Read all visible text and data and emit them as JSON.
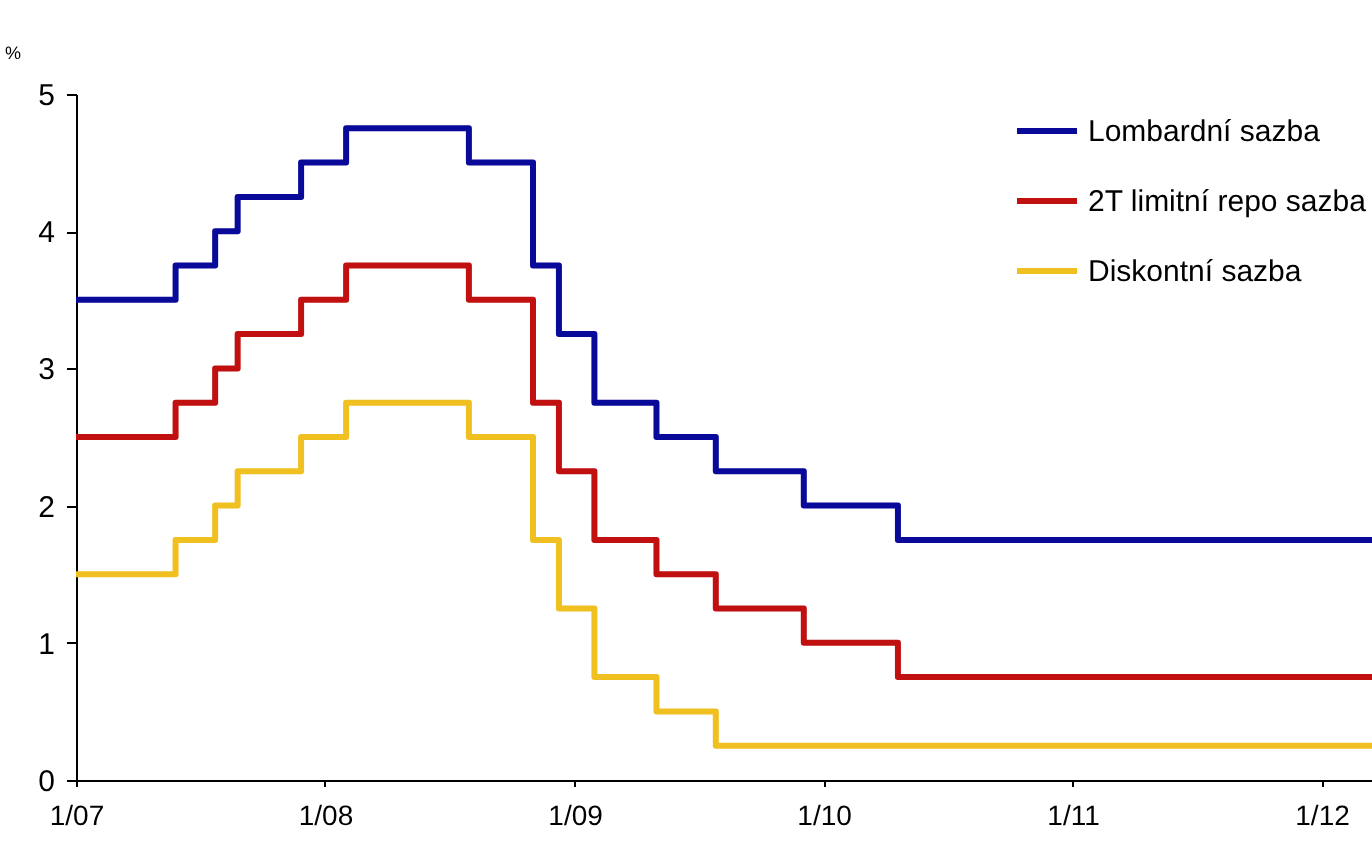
{
  "chart_data": {
    "type": "step",
    "ylabel": "%",
    "x": [
      "2007-01-01",
      "2007-05-27",
      "2007-07-24",
      "2007-08-26",
      "2007-11-27",
      "2008-02-01",
      "2008-07-30",
      "2008-11-01",
      "2008-12-09",
      "2009-01-30",
      "2009-05-01",
      "2009-07-27",
      "2009-12-03",
      "2010-04-20",
      "2012-03-15"
    ],
    "series": [
      {
        "name": "Lombardní sazba",
        "color": "#0a0a9a",
        "values": [
          3.5,
          3.75,
          4.0,
          4.25,
          4.5,
          4.75,
          4.5,
          3.75,
          3.25,
          2.75,
          2.5,
          2.25,
          2.0,
          1.75,
          1.75
        ]
      },
      {
        "name": "2T limitní repo sazba",
        "color": "#c01010",
        "values": [
          2.5,
          2.75,
          3.0,
          3.25,
          3.5,
          3.75,
          3.5,
          2.75,
          2.25,
          1.75,
          1.5,
          1.25,
          1.0,
          0.75,
          0.75
        ]
      },
      {
        "name": "Diskontní sazba",
        "color": "#f0c020",
        "values": [
          1.5,
          1.75,
          2.0,
          2.25,
          2.5,
          2.75,
          2.5,
          1.75,
          1.25,
          0.75,
          0.5,
          0.25,
          0.25,
          0.25,
          0.25
        ]
      }
    ],
    "xlim": [
      "2007-01-01",
      "2012-03-15"
    ],
    "xticks": [
      {
        "value": "2007-01-01",
        "label": "1/07"
      },
      {
        "value": "2008-01-01",
        "label": "1/08"
      },
      {
        "value": "2009-01-01",
        "label": "1/09"
      },
      {
        "value": "2010-01-01",
        "label": "1/10"
      },
      {
        "value": "2011-01-01",
        "label": "1/11"
      },
      {
        "value": "2012-01-01",
        "label": "1/12"
      }
    ],
    "ylim": [
      0,
      5
    ],
    "yticks": [
      0,
      1,
      2,
      3,
      4,
      5
    ],
    "grid": false,
    "legend": "top right",
    "marker": "none",
    "line_style": "solid"
  }
}
